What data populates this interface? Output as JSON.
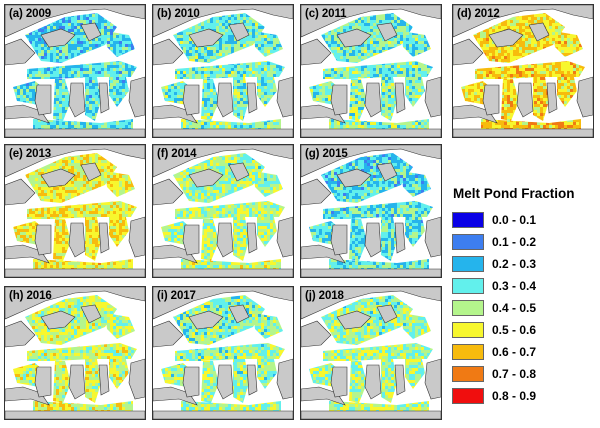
{
  "panels": [
    {
      "label": "(a) 2009",
      "mean": 0.35
    },
    {
      "label": "(b) 2010",
      "mean": 0.42
    },
    {
      "label": "(c) 2011",
      "mean": 0.42
    },
    {
      "label": "(d) 2012",
      "mean": 0.62
    },
    {
      "label": "(e) 2013",
      "mean": 0.58
    },
    {
      "label": "(f) 2014",
      "mean": 0.48
    },
    {
      "label": "(g) 2015",
      "mean": 0.36
    },
    {
      "label": "(h) 2016",
      "mean": 0.52
    },
    {
      "label": "(i) 2017",
      "mean": 0.45
    },
    {
      "label": "(j) 2018",
      "mean": 0.47
    }
  ],
  "legend": {
    "title": "Melt Pond Fraction",
    "items": [
      {
        "label": "0.0 - 0.1",
        "color": "#0a00e6"
      },
      {
        "label": "0.1 - 0.2",
        "color": "#3d7ef0"
      },
      {
        "label": "0.2 - 0.3",
        "color": "#25b4ec"
      },
      {
        "label": "0.3 - 0.4",
        "color": "#62f0ec"
      },
      {
        "label": "0.4 - 0.5",
        "color": "#b4f58c"
      },
      {
        "label": "0.5 - 0.6",
        "color": "#f7f72e"
      },
      {
        "label": "0.6 - 0.7",
        "color": "#f7bb0d"
      },
      {
        "label": "0.7 - 0.8",
        "color": "#f07a14"
      },
      {
        "label": "0.8 - 0.9",
        "color": "#f00e0e"
      }
    ]
  },
  "colors": {
    "land": "#c9c9c9",
    "ocean_bg": "#ffffff",
    "coast": "#333333"
  }
}
